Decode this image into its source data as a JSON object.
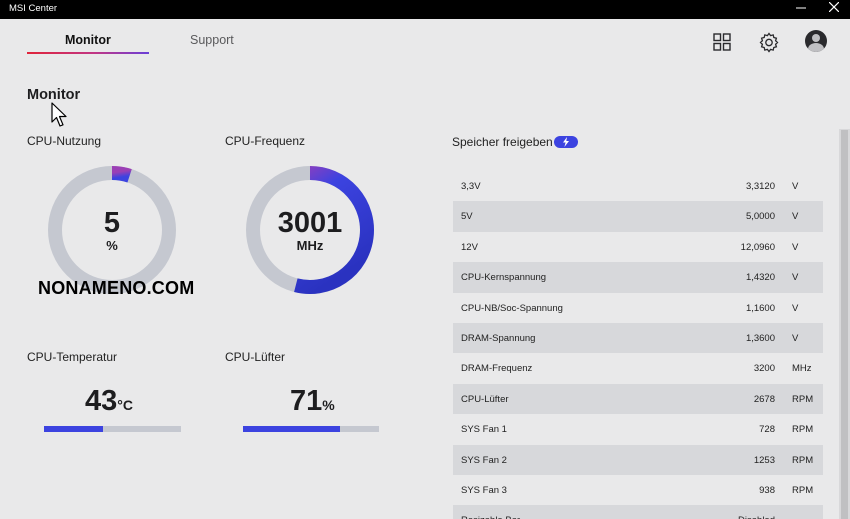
{
  "app": {
    "title": "MSI Center"
  },
  "tabs": [
    {
      "label": "Monitor"
    },
    {
      "label": "Support"
    }
  ],
  "icons": {
    "grid": "grid-icon",
    "settings": "gear-icon",
    "avatar": "user-avatar-icon",
    "minimize": "minimize-icon",
    "close": "close-icon",
    "memory": "lightning-icon"
  },
  "page": {
    "title": "Monitor"
  },
  "metrics": {
    "cpu_usage": {
      "label": "CPU-Nutzung",
      "value": "5",
      "unit": "%",
      "fraction": 0.05
    },
    "cpu_freq": {
      "label": "CPU-Frequenz",
      "value": "3001",
      "unit": "MHz",
      "fraction": 0.54
    },
    "cpu_temp": {
      "label": "CPU-Temperatur",
      "value": "43",
      "unit": "°C",
      "fraction": 0.43
    },
    "cpu_fan": {
      "label": "CPU-Lüfter",
      "value": "71",
      "unit": "%",
      "fraction": 0.71
    }
  },
  "watermark": "NONAMENO.COM",
  "memory": {
    "label": "Speicher freigeben"
  },
  "voltages": [
    {
      "name": "3,3V",
      "value": "3,3120",
      "unit": "V"
    },
    {
      "name": "5V",
      "value": "5,0000",
      "unit": "V"
    },
    {
      "name": "12V",
      "value": "12,0960",
      "unit": "V"
    },
    {
      "name": "CPU-Kernspannung",
      "value": "1,4320",
      "unit": "V"
    },
    {
      "name": "CPU-NB/Soc-Spannung",
      "value": "1,1600",
      "unit": "V"
    },
    {
      "name": "DRAM-Spannung",
      "value": "1,3600",
      "unit": "V"
    },
    {
      "name": "DRAM-Frequenz",
      "value": "3200",
      "unit": "MHz"
    },
    {
      "name": "CPU-Lüfter",
      "value": "2678",
      "unit": "RPM"
    },
    {
      "name": "SYS Fan 1",
      "value": "728",
      "unit": "RPM"
    },
    {
      "name": "SYS Fan 2",
      "value": "1253",
      "unit": "RPM"
    },
    {
      "name": "SYS Fan 3",
      "value": "938",
      "unit": "RPM"
    },
    {
      "name": "Resizable Bar",
      "value": "Disabled",
      "unit": ""
    }
  ],
  "colors": {
    "accent": "#3c43e0",
    "track": "#c5c8d0",
    "titlebar": "#000000",
    "background": "#e9e9ea"
  }
}
